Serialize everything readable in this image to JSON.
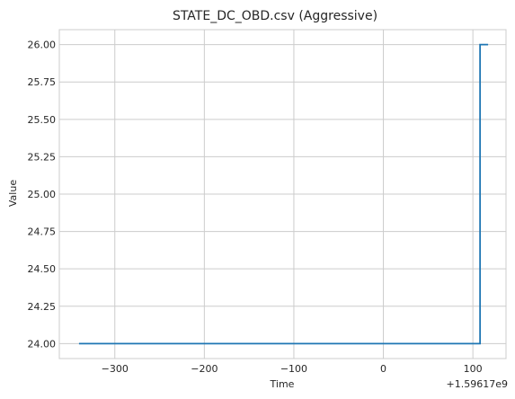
{
  "chart_data": {
    "type": "line",
    "title": "STATE_DC_OBD.csv (Aggressive)",
    "xlabel": "Time",
    "ylabel": "Value",
    "x_offset_label": "+1.59617e9",
    "xlim": [
      -362,
      137
    ],
    "ylim": [
      23.9,
      26.1
    ],
    "x_ticks": [
      -300,
      -200,
      -100,
      0,
      100
    ],
    "x_tick_labels": [
      "−300",
      "−200",
      "−100",
      "0",
      "100"
    ],
    "y_ticks": [
      24.0,
      24.25,
      24.5,
      24.75,
      25.0,
      25.25,
      25.5,
      25.75,
      26.0
    ],
    "y_tick_labels": [
      "24.00",
      "24.25",
      "24.50",
      "24.75",
      "25.00",
      "25.25",
      "25.50",
      "25.75",
      "26.00"
    ],
    "grid": true,
    "step": true,
    "series": [
      {
        "color": "#1f77b4",
        "x": [
          -340,
          108,
          108,
          117
        ],
        "y": [
          24.0,
          24.0,
          26.0,
          26.0
        ]
      }
    ]
  }
}
